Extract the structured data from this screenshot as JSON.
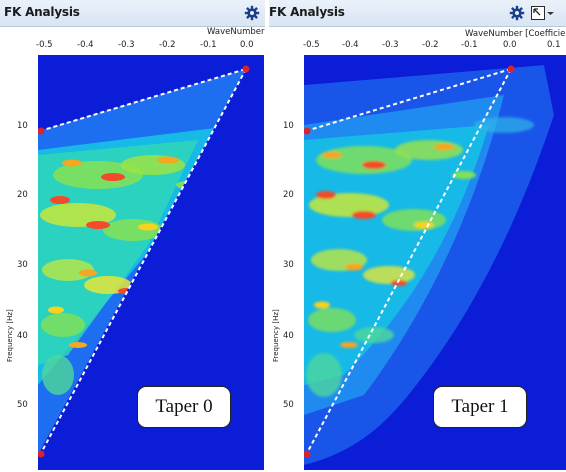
{
  "panels": [
    {
      "title": "FK Analysis",
      "x_axis_label": "WaveNumber [Coefficient]",
      "x_ticks": [
        "-0.5",
        "-0.4",
        "-0.3",
        "-0.2",
        "-0.1",
        "0.0"
      ],
      "y_axis_label": "Frequency [Hz]",
      "y_ticks": [
        "10",
        "20",
        "30",
        "40",
        "50"
      ],
      "caption": "Taper 0"
    },
    {
      "title": "FK Analysis",
      "x_axis_label": "WaveNumber [Coefficient]",
      "x_ticks": [
        "-0.5",
        "-0.4",
        "-0.3",
        "-0.2",
        "-0.1",
        "0.0",
        "0.1"
      ],
      "y_axis_label": "Frequency [Hz]",
      "y_ticks": [
        "10",
        "20",
        "30",
        "40",
        "50"
      ],
      "caption": "Taper 1"
    }
  ],
  "icons": {
    "settings": "gear-icon",
    "popout": "popout-window-icon",
    "menu": "chevron-down-icon"
  },
  "colors": {
    "background_blue": "#0b1dd6",
    "marker_red": "#e0202a",
    "outline_white": "#ffffff"
  }
}
